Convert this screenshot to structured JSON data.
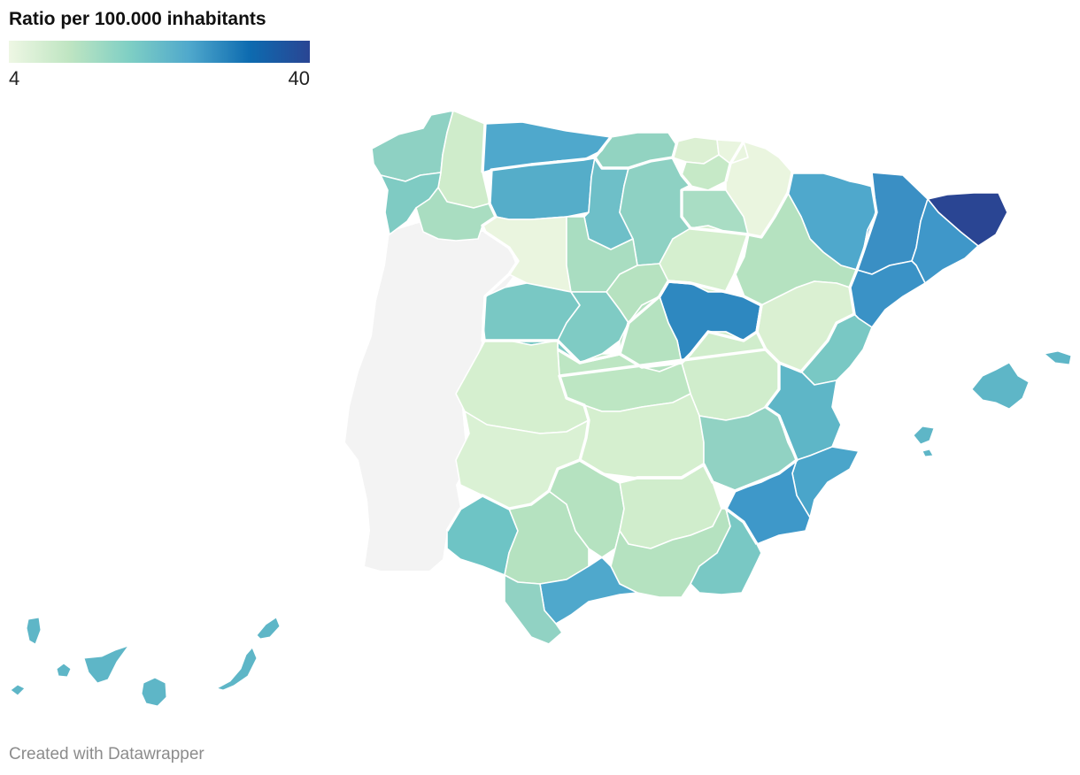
{
  "legend": {
    "title": "Ratio per 100.000 inhabitants",
    "min_label": "4",
    "max_label": "40",
    "gradient_colors": [
      "#eef7e4",
      "#bfe5c2",
      "#7fcfc4",
      "#4fa8cc",
      "#0d6bb0",
      "#2a4593"
    ]
  },
  "footer": {
    "credit": "Created with Datawrapper"
  },
  "colors": {
    "no_data": "#f2f2f2",
    "border": "#ffffff"
  }
}
